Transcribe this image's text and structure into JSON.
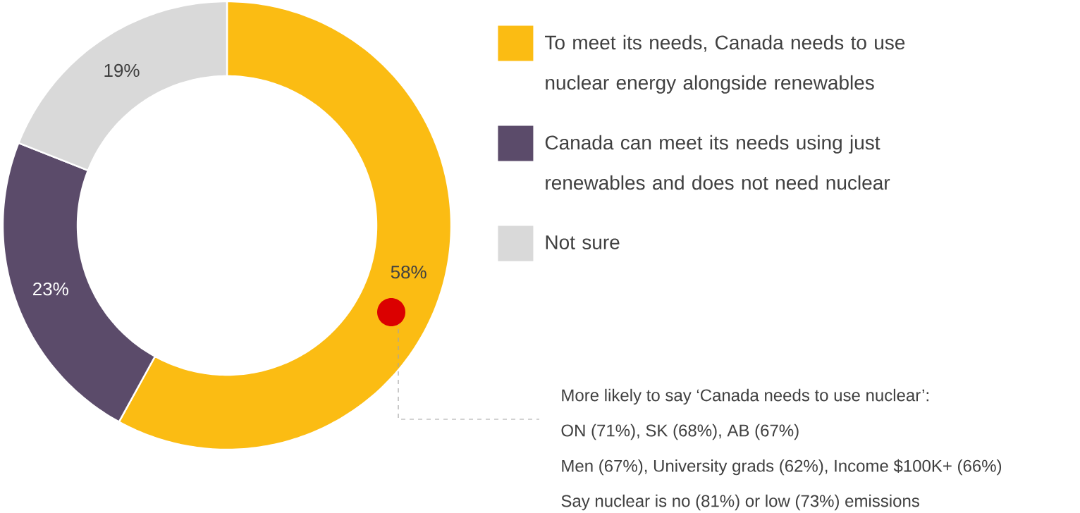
{
  "chart_data": {
    "type": "donut",
    "categories": [
      "To meet its needs, Canada needs to use nuclear energy alongside renewables",
      "Canada can meet its needs using just renewables and does not need nuclear",
      "Not sure"
    ],
    "values": [
      58,
      23,
      19
    ],
    "colors": [
      "#fbbc13",
      "#5b4b6a",
      "#d9d9d9"
    ],
    "value_labels": [
      "58%",
      "23%",
      "19%"
    ],
    "legend": "right",
    "annotations": [
      "More likely to say ‘Canada needs to use nuclear’:",
      "ON (71%), SK (68%), AB (67%)",
      "Men (67%), University grads (62%), Income $100K+ (66%)",
      "Say nuclear is no (81%) or low (73%) emissions"
    ]
  }
}
